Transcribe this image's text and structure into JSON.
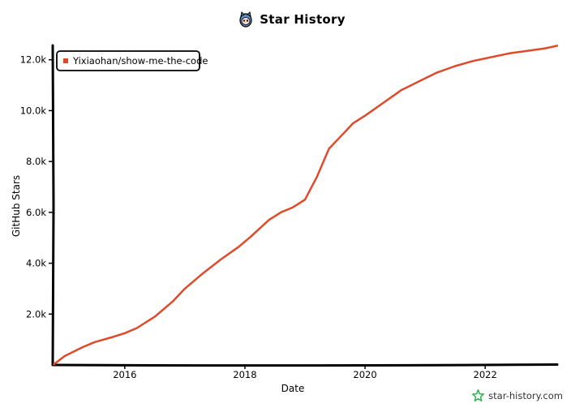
{
  "header": {
    "title": "Star History",
    "logo_icon": "octocat-icon"
  },
  "brand": {
    "label": "star-history.com",
    "icon": "star-logo-icon",
    "color": "#2fb24c"
  },
  "colors": {
    "series": "#dd4b2b",
    "axis": "#000000"
  },
  "chart_data": {
    "type": "line",
    "title": "Star History",
    "xlabel": "Date",
    "ylabel": "GitHub Stars",
    "xlim": [
      2014.8,
      2023.2
    ],
    "ylim": [
      0,
      12500
    ],
    "x_ticks": [
      2016,
      2018,
      2020,
      2022
    ],
    "x_tick_labels": [
      "2016",
      "2018",
      "2020",
      "2022"
    ],
    "y_ticks": [
      2000,
      4000,
      6000,
      8000,
      10000,
      12000
    ],
    "y_tick_labels": [
      "2.0k",
      "4.0k",
      "6.0k",
      "8.0k",
      "10.0k",
      "12.0k"
    ],
    "legend_position": "top-left",
    "series": [
      {
        "name": "Yixiaohan/show-me-the-code",
        "x": [
          2014.82,
          2015.0,
          2015.3,
          2015.5,
          2015.8,
          2016.0,
          2016.2,
          2016.5,
          2016.8,
          2017.0,
          2017.3,
          2017.6,
          2017.9,
          2018.1,
          2018.4,
          2018.6,
          2018.8,
          2019.0,
          2019.2,
          2019.4,
          2019.6,
          2019.8,
          2020.0,
          2020.3,
          2020.6,
          2020.9,
          2021.2,
          2021.5,
          2021.8,
          2022.1,
          2022.4,
          2022.7,
          2023.0,
          2023.2
        ],
        "values": [
          30,
          350,
          700,
          900,
          1100,
          1250,
          1450,
          1900,
          2500,
          3000,
          3600,
          4150,
          4650,
          5050,
          5700,
          6000,
          6200,
          6500,
          7400,
          8500,
          9000,
          9500,
          9800,
          10300,
          10800,
          11150,
          11500,
          11750,
          11950,
          12100,
          12250,
          12350,
          12450,
          12550
        ]
      }
    ]
  }
}
